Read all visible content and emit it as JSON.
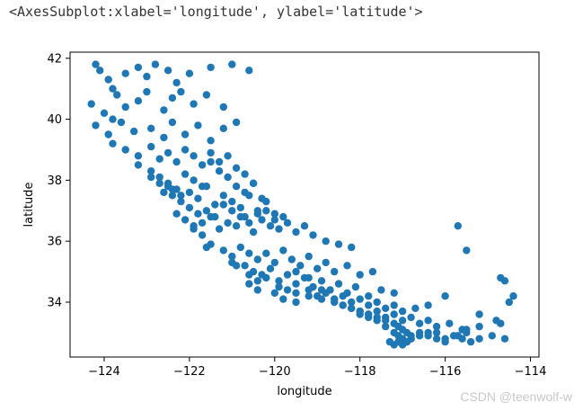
{
  "output_repr": "<AxesSubplot:xlabel='longitude', ylabel='latitude'>",
  "watermark": "CSDN @teenwolf-w",
  "colors": {
    "marker": "#1f77b4",
    "axes": "#000000"
  },
  "chart_data": {
    "type": "scatter",
    "xlabel": "longitude",
    "ylabel": "latitude",
    "xlim": [
      -124.8,
      -113.8
    ],
    "ylim": [
      32.2,
      42.2
    ],
    "xticks": [
      -124,
      -122,
      -120,
      -118,
      -116,
      -114
    ],
    "yticks": [
      34,
      36,
      38,
      40,
      42
    ],
    "xtick_labels": [
      "−124",
      "−122",
      "−120",
      "−118",
      "−116",
      "−114"
    ],
    "ytick_labels": [
      "34",
      "36",
      "38",
      "40",
      "42"
    ],
    "grid": false,
    "series": [
      {
        "x": [
          -124.2,
          -124.1,
          -123.9,
          -123.8,
          -123.7,
          -123.5,
          -123.2,
          -123.0,
          -122.8,
          -122.5,
          -122.3,
          -122.0,
          -121.5,
          -121.0,
          -120.6,
          -124.3,
          -124.0,
          -123.8,
          -123.5,
          -123.2,
          -123.0,
          -122.6,
          -122.4,
          -122.2,
          -121.9,
          -121.6,
          -121.2,
          -124.2,
          -123.9,
          -123.6,
          -123.3,
          -122.9,
          -122.6,
          -122.4,
          -122.1,
          -121.8,
          -121.5,
          -121.2,
          -120.9,
          -123.8,
          -123.5,
          -123.2,
          -122.9,
          -122.7,
          -122.5,
          -122.3,
          -122.1,
          -121.9,
          -121.7,
          -121.5,
          -121.3,
          -121.1,
          -120.9,
          -120.7,
          -120.5,
          -123.2,
          -122.9,
          -122.7,
          -122.5,
          -122.3,
          -122.1,
          -121.9,
          -121.7,
          -121.5,
          -121.3,
          -121.1,
          -120.9,
          -120.7,
          -120.5,
          -120.3,
          -122.9,
          -122.7,
          -122.5,
          -122.4,
          -122.2,
          -122.0,
          -121.8,
          -121.6,
          -121.4,
          -121.2,
          -121.0,
          -120.8,
          -120.6,
          -120.4,
          -120.2,
          -120.0,
          -122.6,
          -122.4,
          -122.2,
          -122.0,
          -121.8,
          -121.6,
          -121.4,
          -121.2,
          -121.0,
          -120.8,
          -120.6,
          -120.4,
          -120.2,
          -120.0,
          -119.8,
          -122.3,
          -122.1,
          -121.9,
          -121.7,
          -121.5,
          -121.3,
          -121.1,
          -120.9,
          -120.7,
          -120.5,
          -120.3,
          -120.1,
          -119.9,
          -119.7,
          -119.5,
          -119.3,
          -119.1,
          -118.8,
          -118.5,
          -118.2,
          -121.9,
          -121.7,
          -121.5,
          -121.2,
          -121.0,
          -120.8,
          -120.6,
          -120.4,
          -120.2,
          -120.0,
          -119.8,
          -119.6,
          -119.4,
          -119.2,
          -119.0,
          -118.8,
          -118.6,
          -118.3,
          -118.0,
          -117.7,
          -121.6,
          -121.0,
          -120.7,
          -120.5,
          -120.3,
          -120.1,
          -119.9,
          -119.7,
          -119.5,
          -119.3,
          -119.1,
          -118.9,
          -118.7,
          -118.5,
          -118.3,
          -118.1,
          -117.8,
          -117.5,
          -117.2,
          -120.9,
          -120.6,
          -120.4,
          -120.2,
          -119.9,
          -119.7,
          -119.5,
          -119.2,
          -119.0,
          -118.8,
          -118.6,
          -118.4,
          -118.2,
          -118.0,
          -117.8,
          -117.6,
          -117.4,
          -117.2,
          -117.0,
          -116.7,
          -116.4,
          -116.0,
          -120.6,
          -120.4,
          -120.0,
          -119.8,
          -119.5,
          -119.2,
          -118.9,
          -118.6,
          -118.4,
          -118.2,
          -118.0,
          -117.8,
          -117.6,
          -117.4,
          -117.2,
          -117.0,
          -116.8,
          -116.6,
          -116.4,
          -116.2,
          -115.9,
          -115.6,
          -115.2,
          -114.8,
          -114.5,
          -114.4,
          -119.5,
          -119.2,
          -118.9,
          -118.6,
          -118.4,
          -118.2,
          -118.0,
          -117.8,
          -117.6,
          -117.4,
          -117.2,
          -117.1,
          -117.0,
          -116.9,
          -116.8,
          -116.6,
          -116.4,
          -116.2,
          -116.0,
          -115.7,
          -115.5,
          -115.2,
          -114.9,
          -114.7,
          -114.6,
          -118.0,
          -117.8,
          -117.6,
          -117.4,
          -117.2,
          -117.1,
          -117.0,
          -116.9,
          -116.8,
          -116.6,
          -116.4,
          -116.2,
          -116.0,
          -115.8,
          -115.6,
          -115.5,
          -115.4,
          -115.2,
          -114.7,
          -114.6,
          -117.3,
          -117.2,
          -117.1,
          -117.0,
          -116.9,
          -116.8,
          -115.7,
          -115.5
        ],
        "y": [
          41.8,
          41.6,
          41.3,
          41.0,
          40.8,
          41.5,
          41.7,
          41.4,
          41.8,
          41.6,
          41.2,
          41.5,
          41.7,
          41.8,
          41.6,
          40.5,
          40.2,
          40.0,
          40.4,
          40.6,
          40.9,
          40.3,
          40.7,
          40.9,
          40.5,
          40.8,
          40.4,
          39.8,
          39.5,
          39.9,
          39.6,
          39.7,
          39.4,
          39.9,
          39.5,
          39.8,
          39.3,
          39.7,
          39.9,
          39.2,
          39.0,
          38.8,
          39.1,
          38.7,
          38.9,
          38.6,
          39.0,
          38.8,
          38.5,
          38.9,
          38.6,
          38.8,
          38.4,
          38.2,
          37.9,
          38.5,
          38.3,
          38.1,
          37.9,
          37.7,
          38.2,
          38.0,
          37.8,
          38.6,
          38.3,
          38.1,
          37.8,
          37.6,
          37.9,
          37.4,
          38.1,
          37.9,
          37.8,
          37.7,
          37.5,
          37.6,
          37.4,
          37.8,
          37.2,
          37.5,
          37.3,
          37.1,
          37.5,
          37.0,
          37.3,
          36.9,
          37.6,
          37.5,
          37.3,
          37.1,
          36.9,
          37.0,
          36.8,
          37.2,
          37.0,
          36.8,
          36.6,
          36.9,
          37.0,
          36.7,
          36.8,
          36.9,
          36.7,
          36.5,
          36.6,
          36.8,
          36.4,
          36.6,
          36.5,
          36.8,
          36.3,
          36.7,
          36.5,
          36.4,
          36.6,
          36.3,
          36.5,
          36.2,
          36.0,
          35.9,
          35.8,
          36.4,
          36.2,
          35.9,
          35.7,
          35.5,
          35.8,
          35.6,
          35.4,
          35.6,
          35.3,
          35.7,
          35.4,
          35.2,
          35.5,
          35.1,
          35.3,
          35.0,
          35.2,
          34.9,
          35.0,
          35.8,
          35.3,
          35.2,
          35.0,
          34.9,
          35.1,
          34.7,
          34.9,
          34.6,
          34.8,
          34.5,
          34.7,
          34.4,
          34.6,
          34.3,
          34.5,
          34.2,
          34.4,
          34.3,
          35.2,
          34.9,
          34.7,
          34.8,
          34.5,
          34.4,
          34.3,
          34.4,
          34.2,
          34.3,
          34.1,
          34.2,
          34.0,
          34.1,
          33.9,
          34.0,
          33.8,
          33.9,
          33.7,
          33.8,
          33.9,
          34.2,
          34.6,
          34.4,
          34.3,
          34.1,
          34.0,
          34.2,
          34.1,
          34.0,
          33.9,
          33.8,
          33.7,
          33.6,
          33.7,
          33.5,
          33.6,
          33.4,
          33.5,
          33.3,
          33.4,
          33.2,
          33.3,
          33.1,
          33.2,
          33.4,
          34.0,
          34.2,
          35.0,
          34.8,
          34.4,
          34.1,
          33.9,
          33.8,
          33.7,
          33.6,
          33.5,
          33.4,
          33.3,
          33.2,
          33.1,
          33.0,
          32.9,
          33.0,
          32.9,
          33.0,
          32.8,
          32.9,
          33.0,
          32.8,
          32.9,
          33.3,
          34.7,
          33.6,
          33.5,
          33.4,
          33.2,
          33.0,
          32.9,
          32.8,
          32.7,
          32.8,
          32.9,
          33.0,
          32.8,
          32.7,
          32.9,
          32.8,
          33.1,
          32.7,
          33.6,
          34.8,
          32.8,
          32.7,
          32.6,
          32.7,
          32.6,
          32.7,
          32.8,
          36.5,
          35.7
        ]
      }
    ]
  }
}
